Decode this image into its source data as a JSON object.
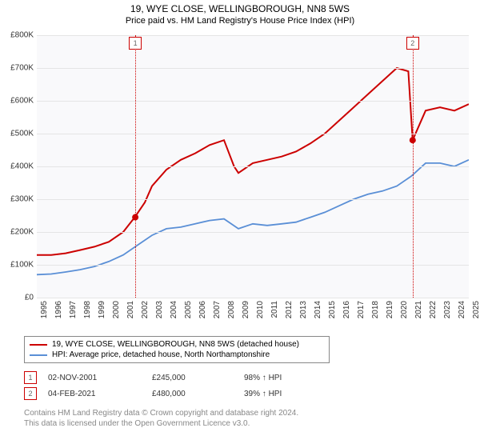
{
  "header": {
    "title": "19, WYE CLOSE, WELLINGBOROUGH, NN8 5WS",
    "subtitle": "Price paid vs. HM Land Registry's House Price Index (HPI)"
  },
  "chart": {
    "type": "line",
    "background_color": "#f9f9fb",
    "grid_color": "#e5e5e5",
    "y_axis": {
      "min": 0,
      "max": 800000,
      "ticks": [
        "£0",
        "£100K",
        "£200K",
        "£300K",
        "£400K",
        "£500K",
        "£600K",
        "£700K",
        "£800K"
      ]
    },
    "x_axis": {
      "min": 1995,
      "max": 2025,
      "ticks": [
        "1995",
        "1996",
        "1997",
        "1998",
        "1999",
        "2000",
        "2001",
        "2002",
        "2003",
        "2004",
        "2005",
        "2006",
        "2007",
        "2008",
        "2009",
        "2010",
        "2011",
        "2012",
        "2013",
        "2014",
        "2015",
        "2016",
        "2017",
        "2018",
        "2019",
        "2020",
        "2021",
        "2022",
        "2023",
        "2024",
        "2025"
      ]
    },
    "series": [
      {
        "name": "property",
        "color": "#cc0000",
        "line_width": 2,
        "points": [
          [
            1995,
            130000
          ],
          [
            1996,
            130000
          ],
          [
            1997,
            135000
          ],
          [
            1998,
            145000
          ],
          [
            1999,
            155000
          ],
          [
            2000,
            170000
          ],
          [
            2001,
            200000
          ],
          [
            2001.8,
            245000
          ],
          [
            2002.5,
            290000
          ],
          [
            2003,
            340000
          ],
          [
            2004,
            390000
          ],
          [
            2005,
            420000
          ],
          [
            2006,
            440000
          ],
          [
            2007,
            465000
          ],
          [
            2008,
            480000
          ],
          [
            2008.7,
            400000
          ],
          [
            2009,
            380000
          ],
          [
            2010,
            410000
          ],
          [
            2011,
            420000
          ],
          [
            2012,
            430000
          ],
          [
            2013,
            445000
          ],
          [
            2014,
            470000
          ],
          [
            2015,
            500000
          ],
          [
            2016,
            540000
          ],
          [
            2017,
            580000
          ],
          [
            2018,
            620000
          ],
          [
            2019,
            660000
          ],
          [
            2020,
            700000
          ],
          [
            2020.8,
            690000
          ],
          [
            2021.1,
            480000
          ],
          [
            2022,
            570000
          ],
          [
            2023,
            580000
          ],
          [
            2024,
            570000
          ],
          [
            2025,
            590000
          ]
        ]
      },
      {
        "name": "hpi",
        "color": "#5a8fd6",
        "line_width": 1.8,
        "points": [
          [
            1995,
            70000
          ],
          [
            1996,
            72000
          ],
          [
            1997,
            78000
          ],
          [
            1998,
            85000
          ],
          [
            1999,
            95000
          ],
          [
            2000,
            110000
          ],
          [
            2001,
            130000
          ],
          [
            2002,
            160000
          ],
          [
            2003,
            190000
          ],
          [
            2004,
            210000
          ],
          [
            2005,
            215000
          ],
          [
            2006,
            225000
          ],
          [
            2007,
            235000
          ],
          [
            2008,
            240000
          ],
          [
            2009,
            210000
          ],
          [
            2010,
            225000
          ],
          [
            2011,
            220000
          ],
          [
            2012,
            225000
          ],
          [
            2013,
            230000
          ],
          [
            2014,
            245000
          ],
          [
            2015,
            260000
          ],
          [
            2016,
            280000
          ],
          [
            2017,
            300000
          ],
          [
            2018,
            315000
          ],
          [
            2019,
            325000
          ],
          [
            2020,
            340000
          ],
          [
            2021,
            370000
          ],
          [
            2022,
            410000
          ],
          [
            2023,
            410000
          ],
          [
            2024,
            400000
          ],
          [
            2025,
            420000
          ]
        ]
      }
    ],
    "markers": [
      {
        "label": "1",
        "year": 2001.84,
        "price": 245000,
        "color": "#cc0000"
      },
      {
        "label": "2",
        "year": 2021.1,
        "price": 480000,
        "color": "#cc0000"
      }
    ]
  },
  "legend": [
    {
      "color": "#cc0000",
      "text": "19, WYE CLOSE, WELLINGBOROUGH, NN8 5WS (detached house)"
    },
    {
      "color": "#5a8fd6",
      "text": "HPI: Average price, detached house, North Northamptonshire"
    }
  ],
  "sales": [
    {
      "marker": "1",
      "date": "02-NOV-2001",
      "price": "£245,000",
      "pct": "98% ↑ HPI"
    },
    {
      "marker": "2",
      "date": "04-FEB-2021",
      "price": "£480,000",
      "pct": "39% ↑ HPI"
    }
  ],
  "footer": {
    "line1": "Contains HM Land Registry data © Crown copyright and database right 2024.",
    "line2": "This data is licensed under the Open Government Licence v3.0."
  }
}
